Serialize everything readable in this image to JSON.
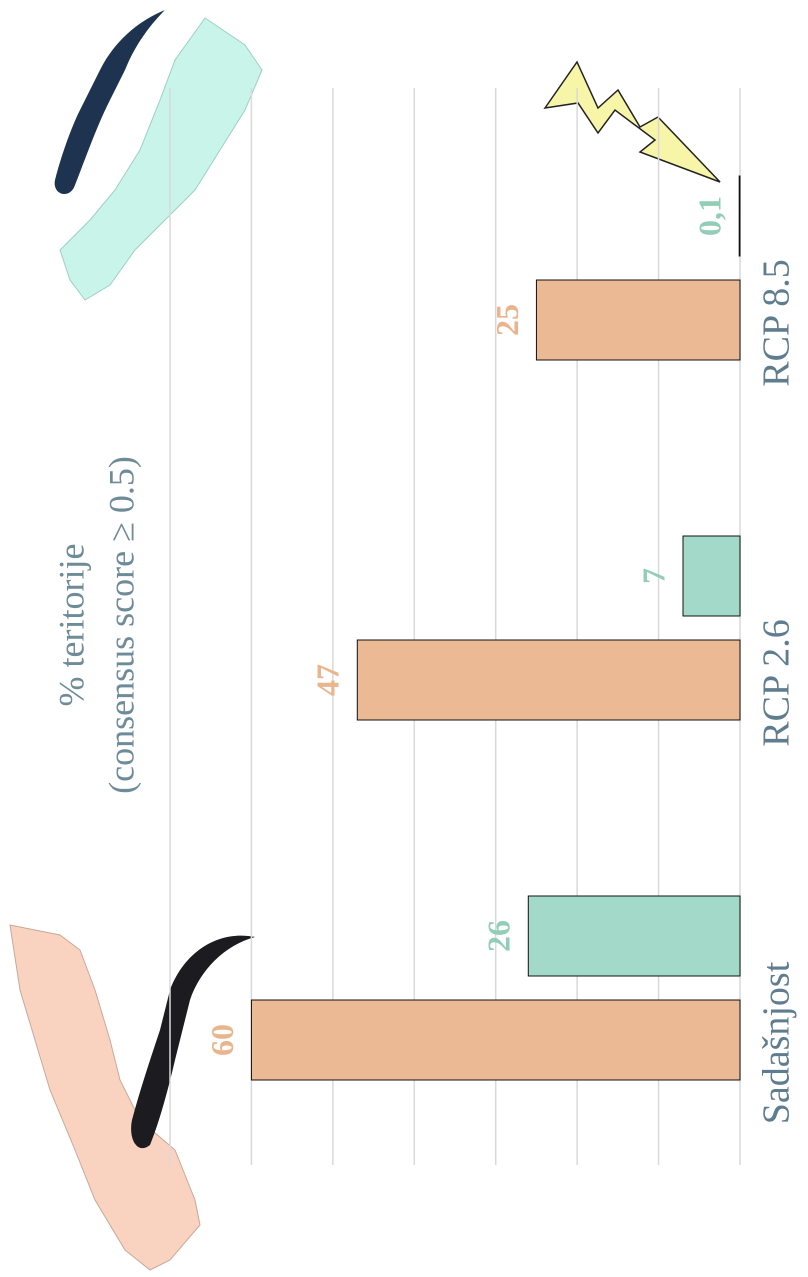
{
  "chart_data": {
    "type": "bar",
    "ylabel_lines": [
      "% teritorije",
      "(consensus score ≥ 0.5)"
    ],
    "categories": [
      "Sadašnjost",
      "RCP 2.6",
      "RCP 8.5"
    ],
    "series": [
      {
        "color": "#ebb994",
        "label_color": "#eab48d",
        "values": [
          60,
          47,
          25
        ]
      },
      {
        "color": "#a3d9c8",
        "label_color": "#92cdb8",
        "values": [
          26,
          7,
          0.1
        ],
        "value_labels": [
          "26",
          "7",
          "0,1"
        ]
      }
    ],
    "ylim": [
      0,
      70
    ],
    "yticks": [
      0,
      10,
      20,
      30,
      40,
      50,
      60,
      70
    ],
    "grid": true
  }
}
